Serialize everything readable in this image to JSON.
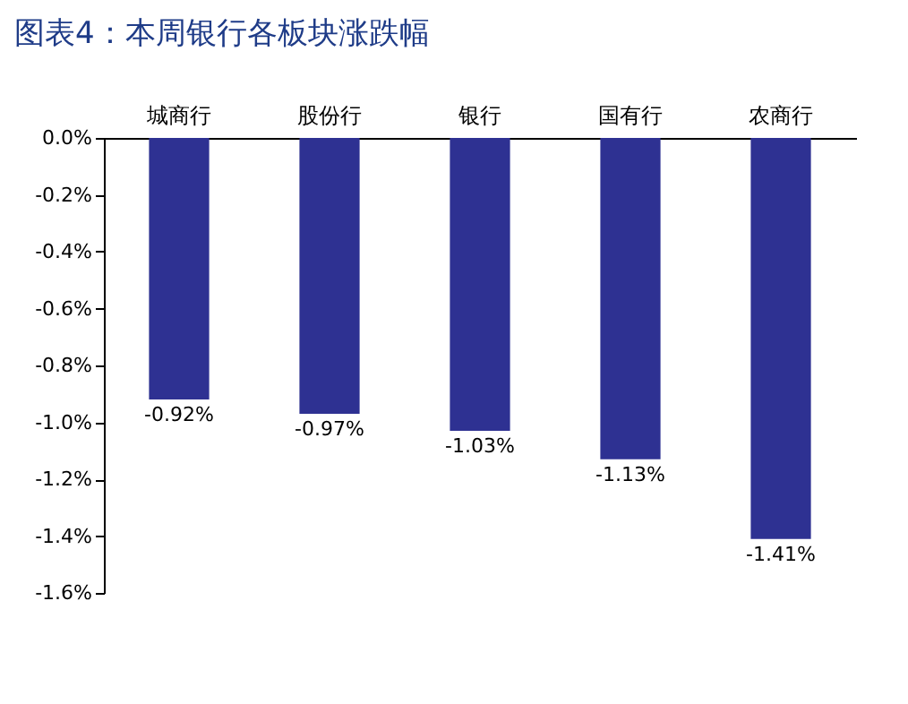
{
  "chart_data": {
    "type": "bar",
    "title": "图表4：本周银行各板块涨跌幅",
    "categories": [
      "城商行",
      "股份行",
      "银行",
      "国有行",
      "农商行"
    ],
    "values": [
      -0.92,
      -0.97,
      -1.03,
      -1.13,
      -1.41
    ],
    "value_labels": [
      "-0.92%",
      "-0.97%",
      "-1.03%",
      "-1.13%",
      "-1.41%"
    ],
    "color": "#2e3192",
    "ylim": [
      -1.6,
      0
    ],
    "yticks": [
      {
        "value": 0,
        "label": "0.0%"
      },
      {
        "value": -0.2,
        "label": "-0.2%"
      },
      {
        "value": -0.4,
        "label": "-0.4%"
      },
      {
        "value": -0.6,
        "label": "-0.6%"
      },
      {
        "value": -0.8,
        "label": "-0.8%"
      },
      {
        "value": -1,
        "label": "-1.0%"
      },
      {
        "value": -1.2,
        "label": "-1.2%"
      },
      {
        "value": -1.4,
        "label": "-1.4%"
      },
      {
        "value": -1.6,
        "label": "-1.6%"
      }
    ],
    "grid": false
  }
}
